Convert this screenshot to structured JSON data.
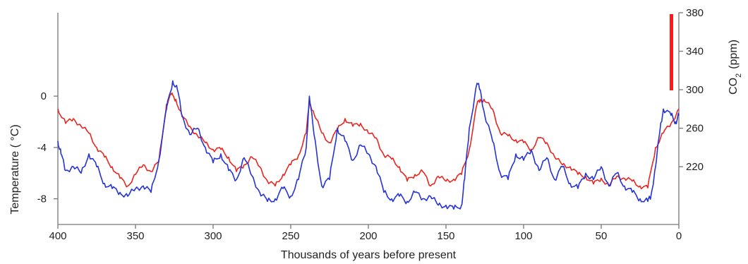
{
  "chart_data": {
    "type": "line",
    "title": "",
    "xlabel": "Thousands of years before present",
    "ylabel_left": "Temperature ( °C)",
    "ylabel_right_main": "CO",
    "ylabel_right_sub": "2",
    "ylabel_right_unit": "(ppm)",
    "xlim": [
      400,
      0
    ],
    "x_ticks": [
      400,
      350,
      300,
      250,
      200,
      150,
      100,
      50,
      0
    ],
    "x_tick_labels": [
      "400",
      "350",
      "300",
      "250",
      "200",
      "150",
      "100",
      "50",
      "0"
    ],
    "ylim_left": [
      -10,
      6.5
    ],
    "y_ticks_left": [
      0,
      -4,
      -8
    ],
    "y_tick_labels_left": [
      "0",
      "-4",
      "-8"
    ],
    "ylim_right": [
      160,
      380
    ],
    "y_ticks_right": [
      380,
      340,
      300,
      260,
      220
    ],
    "y_tick_labels_right": [
      "380",
      "340",
      "300",
      "260",
      "220"
    ],
    "grid": false,
    "legend": "none",
    "series": [
      {
        "axis": "right",
        "color": "#e8261f",
        "x": [
          400,
          395,
          390,
          385,
          380,
          375,
          370,
          365,
          360,
          355,
          350,
          345,
          340,
          335,
          330,
          327,
          324,
          320,
          315,
          310,
          305,
          300,
          295,
          290,
          285,
          280,
          275,
          270,
          265,
          260,
          255,
          250,
          245,
          240,
          238,
          235,
          230,
          225,
          220,
          215,
          210,
          205,
          200,
          195,
          190,
          185,
          180,
          175,
          170,
          165,
          160,
          155,
          150,
          145,
          140,
          135,
          130,
          128,
          125,
          120,
          115,
          110,
          105,
          100,
          95,
          90,
          85,
          80,
          75,
          70,
          65,
          60,
          55,
          50,
          45,
          40,
          35,
          30,
          25,
          20,
          15,
          10,
          5,
          0
        ],
        "y": [
          280,
          265,
          270,
          262,
          255,
          240,
          230,
          220,
          208,
          200,
          212,
          222,
          215,
          225,
          285,
          295,
          290,
          272,
          262,
          252,
          245,
          238,
          238,
          230,
          215,
          222,
          230,
          220,
          205,
          200,
          212,
          222,
          232,
          255,
          288,
          275,
          255,
          245,
          258,
          270,
          262,
          265,
          255,
          250,
          232,
          228,
          220,
          205,
          212,
          215,
          200,
          210,
          205,
          207,
          212,
          238,
          285,
          290,
          288,
          280,
          255,
          252,
          248,
          245,
          238,
          250,
          245,
          230,
          222,
          220,
          212,
          210,
          202,
          208,
          200,
          210,
          208,
          205,
          200,
          198,
          240,
          255,
          265,
          280
        ]
      },
      {
        "axis": "left",
        "color": "#2433d6",
        "x": [
          400,
          398,
          395,
          390,
          385,
          380,
          375,
          370,
          365,
          360,
          355,
          350,
          345,
          340,
          335,
          330,
          326,
          323,
          320,
          315,
          310,
          305,
          300,
          295,
          290,
          285,
          280,
          275,
          270,
          265,
          260,
          255,
          250,
          245,
          240,
          238,
          235,
          230,
          225,
          220,
          215,
          210,
          205,
          200,
          195,
          190,
          185,
          180,
          175,
          170,
          165,
          160,
          155,
          150,
          145,
          140,
          138,
          135,
          130,
          128,
          125,
          120,
          115,
          110,
          105,
          100,
          95,
          90,
          85,
          80,
          75,
          70,
          65,
          60,
          55,
          50,
          45,
          40,
          35,
          30,
          25,
          20,
          18,
          15,
          12,
          10,
          5,
          2,
          0
        ],
        "y": [
          -3.5,
          -4.5,
          -5.8,
          -5.5,
          -6.0,
          -4.5,
          -5.5,
          -6.8,
          -7.2,
          -7.5,
          -7.8,
          -7.2,
          -7.0,
          -7.5,
          -5.0,
          -1.0,
          1.2,
          0.5,
          -1.5,
          -3.0,
          -2.5,
          -4.0,
          -5.2,
          -4.5,
          -5.8,
          -6.5,
          -4.8,
          -6.2,
          -7.5,
          -8.2,
          -8.0,
          -7.2,
          -7.8,
          -6.5,
          -4.0,
          0.0,
          -3.0,
          -7.0,
          -6.5,
          -2.5,
          -3.5,
          -5.0,
          -3.8,
          -4.5,
          -5.5,
          -7.5,
          -8.0,
          -7.8,
          -8.2,
          -7.5,
          -8.0,
          -7.8,
          -8.5,
          -8.5,
          -8.8,
          -8.5,
          -6.5,
          -2.5,
          1.0,
          0.5,
          -1.5,
          -3.5,
          -6.0,
          -6.5,
          -4.5,
          -5.0,
          -4.2,
          -5.8,
          -4.8,
          -6.5,
          -5.5,
          -6.8,
          -7.2,
          -6.0,
          -6.5,
          -5.5,
          -7.0,
          -6.0,
          -7.0,
          -7.5,
          -8.0,
          -8.2,
          -7.8,
          -5.5,
          -2.5,
          -1.0,
          -1.5,
          -2.0,
          -1.5
        ]
      }
    ]
  }
}
